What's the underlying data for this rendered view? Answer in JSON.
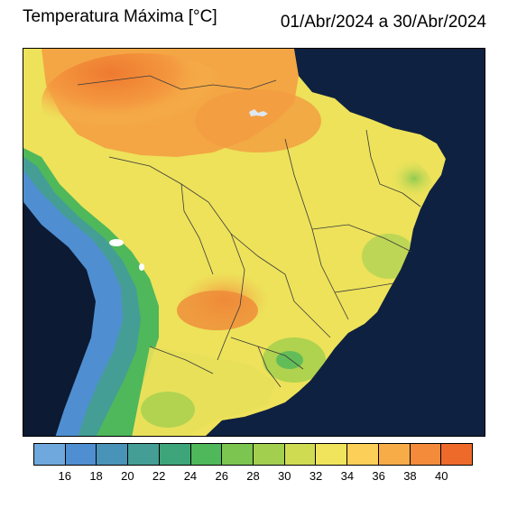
{
  "header": {
    "title": "Temperatura Máxima [°C]",
    "date_range": "01/Abr/2024 a 30/Abr/2024"
  },
  "colorbar": {
    "colors": [
      "#6fa8dc",
      "#4f8fd1",
      "#4a93b8",
      "#449e95",
      "#3ea57a",
      "#4fb85a",
      "#7cc550",
      "#a3cf4e",
      "#cfdc52",
      "#f0e45c",
      "#fbcf58",
      "#f8ac48",
      "#f48b3a",
      "#ee6a2a"
    ],
    "tick_labels": [
      "16",
      "18",
      "20",
      "22",
      "24",
      "26",
      "28",
      "30",
      "32",
      "34",
      "36",
      "38",
      "40"
    ]
  },
  "map": {
    "ocean_color": "#0c1a33",
    "land_fill_colors": {
      "hot": "#ee8a3a",
      "warm": "#f6b24c",
      "mild": "#f0e45c",
      "cool": "#a9d152",
      "cold": "#4fb85a",
      "andes": "#4f8fd1"
    }
  }
}
